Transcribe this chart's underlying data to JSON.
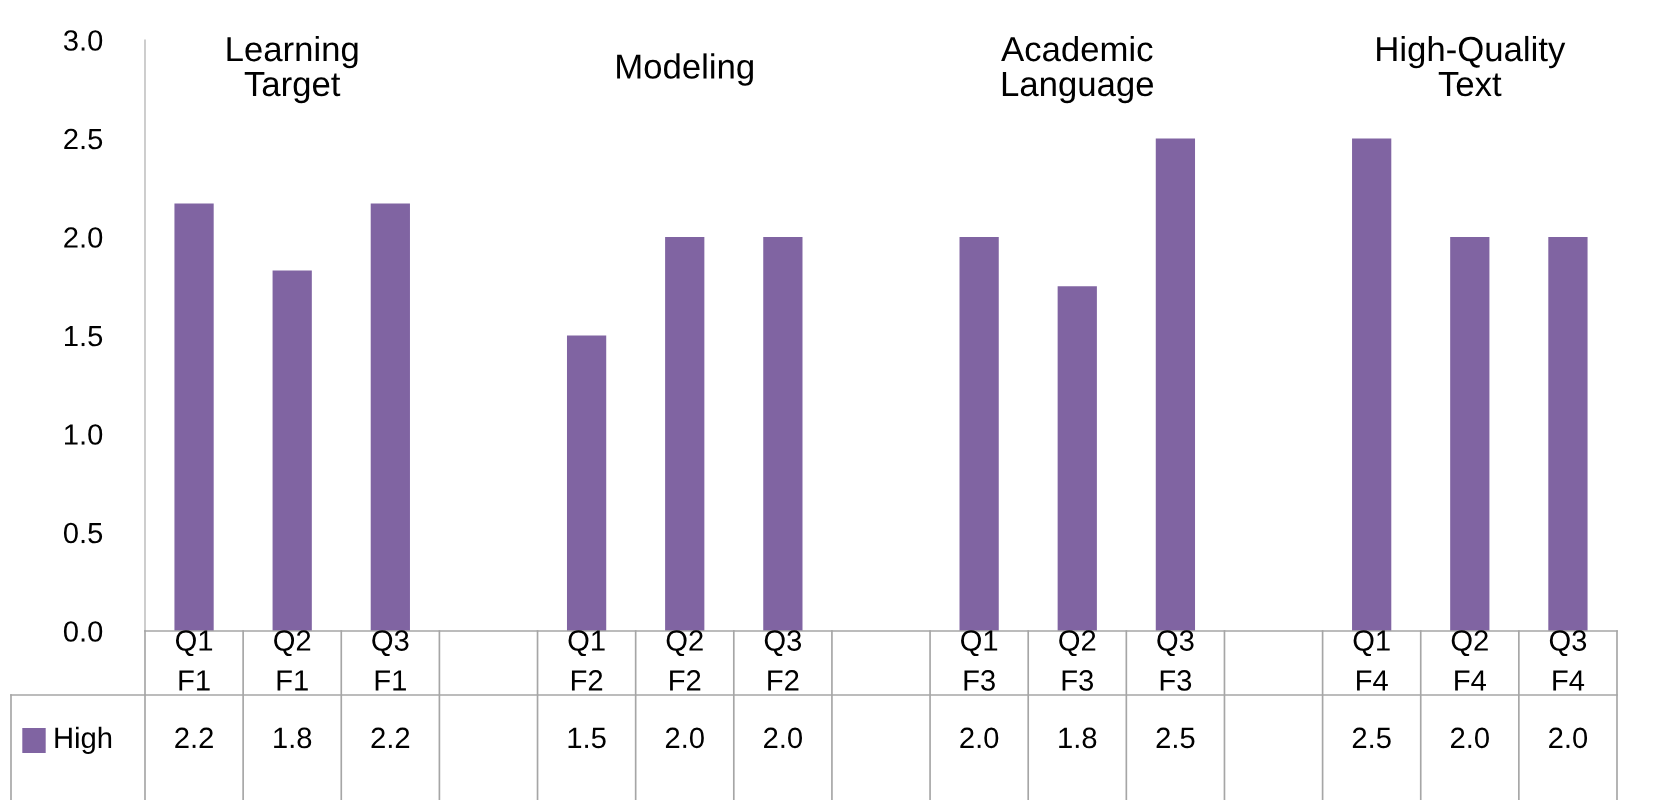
{
  "chart_data": {
    "type": "bar",
    "categories": [
      "Q1\nF1",
      "Q2\nF1",
      "Q3\nF1",
      null,
      "Q1\nF2",
      "Q2\nF2",
      "Q3\nF2",
      null,
      "Q1\nF3",
      "Q2\nF3",
      "Q3\nF3",
      null,
      "Q1\nF4",
      "Q2\nF4",
      "Q3\nF4"
    ],
    "series": [
      {
        "name": "High",
        "color": "#8064a2",
        "values": [
          2.17,
          1.83,
          2.17,
          null,
          1.5,
          2.0,
          2.0,
          null,
          2.0,
          1.75,
          2.5,
          null,
          2.5,
          2.0,
          2.0
        ],
        "value_labels": [
          "2.2",
          "1.8",
          "2.2",
          null,
          "1.5",
          "2.0",
          "2.0",
          null,
          "2.0",
          "1.8",
          "2.5",
          null,
          "2.5",
          "2.0",
          "2.0"
        ]
      }
    ],
    "annotations": [
      "Learning\nTarget",
      "Modeling",
      "Academic\nLanguage",
      "High-Quality\nText"
    ],
    "ylim": [
      0,
      3
    ],
    "yticks": [
      {
        "value": 0,
        "label": "0.0"
      },
      {
        "value": 0.5,
        "label": "0.5"
      },
      {
        "value": 1,
        "label": "1.0"
      },
      {
        "value": 1.5,
        "label": "1.5"
      },
      {
        "value": 2,
        "label": "2.0"
      },
      {
        "value": 2.5,
        "label": "2.5"
      },
      {
        "value": 3,
        "label": "3.0"
      }
    ],
    "grid": false,
    "legend": "bottom left"
  }
}
